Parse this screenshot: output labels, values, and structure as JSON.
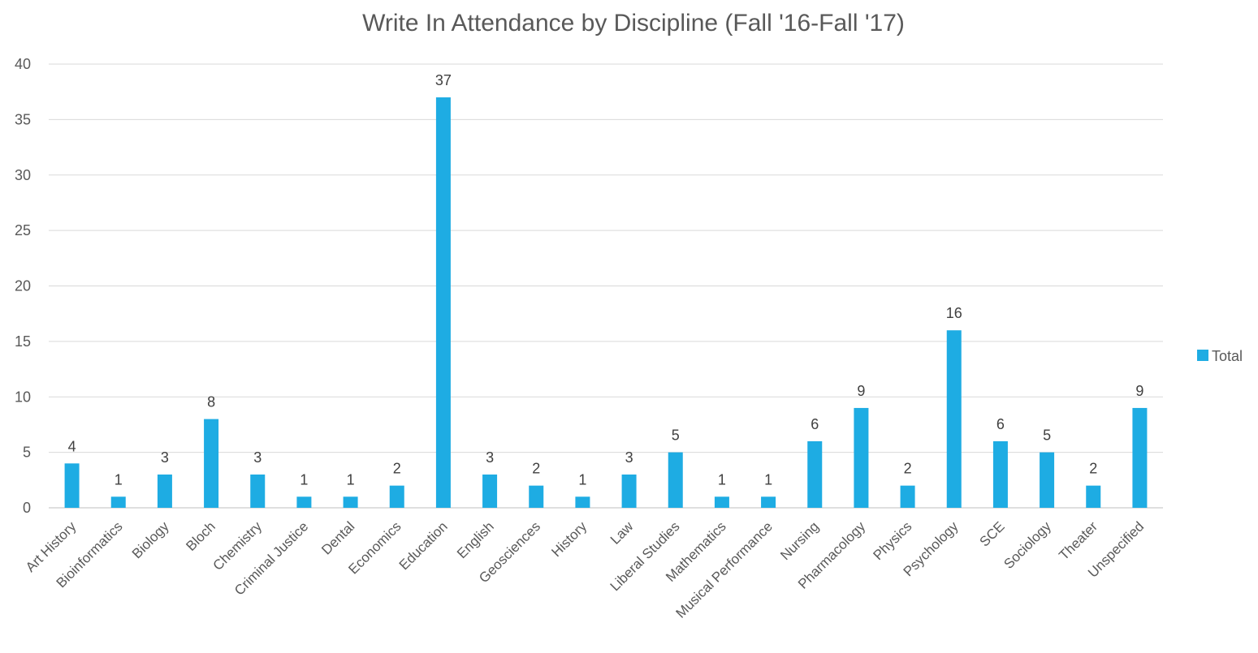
{
  "chart_data": {
    "type": "bar",
    "title": "Write In Attendance by Discipline (Fall '16-Fall '17)",
    "xlabel": "",
    "ylabel": "",
    "ylim": [
      0,
      40
    ],
    "yticks": [
      0,
      5,
      10,
      15,
      20,
      25,
      30,
      35,
      40
    ],
    "grid": true,
    "legend_position": "right",
    "categories": [
      "Art History",
      "Bioinformatics",
      "Biology",
      "Bloch",
      "Chemistry",
      "Criminal Justice",
      "Dental",
      "Economics",
      "Education",
      "English",
      "Geosciences",
      "History",
      "Law",
      "Liberal Studies",
      "Mathematics",
      "Musical Performance",
      "Nursing",
      "Pharmacology",
      "Physics",
      "Psychology",
      "SCE",
      "Sociology",
      "Theater",
      "Unspecified"
    ],
    "series": [
      {
        "name": "Total",
        "color": "#1eace3",
        "values": [
          4,
          1,
          3,
          8,
          3,
          1,
          1,
          2,
          37,
          3,
          2,
          1,
          3,
          5,
          1,
          1,
          6,
          9,
          2,
          16,
          6,
          5,
          2,
          9
        ]
      }
    ]
  }
}
